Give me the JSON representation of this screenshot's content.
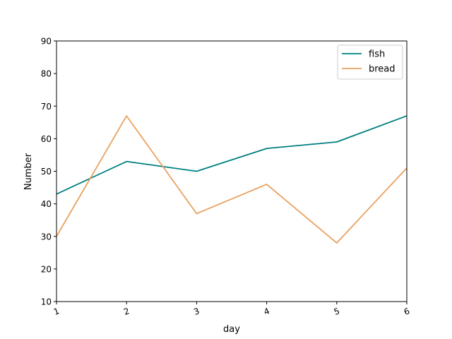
{
  "chart_data": {
    "type": "line",
    "title": "",
    "xlabel": "day",
    "ylabel": "Number",
    "x": [
      1,
      2,
      3,
      4,
      5,
      6
    ],
    "xlim": [
      1,
      6
    ],
    "ylim": [
      10,
      90
    ],
    "yticks": [
      10,
      20,
      30,
      40,
      50,
      60,
      70,
      80,
      90
    ],
    "grid": false,
    "legend_position": "top-right",
    "series": [
      {
        "name": "fish",
        "color": "#007f7f",
        "values": [
          43,
          53,
          50,
          57,
          59,
          67
        ]
      },
      {
        "name": "bread",
        "color": "#e9a15f",
        "values": [
          30,
          67,
          37,
          46,
          28,
          51
        ]
      }
    ]
  }
}
